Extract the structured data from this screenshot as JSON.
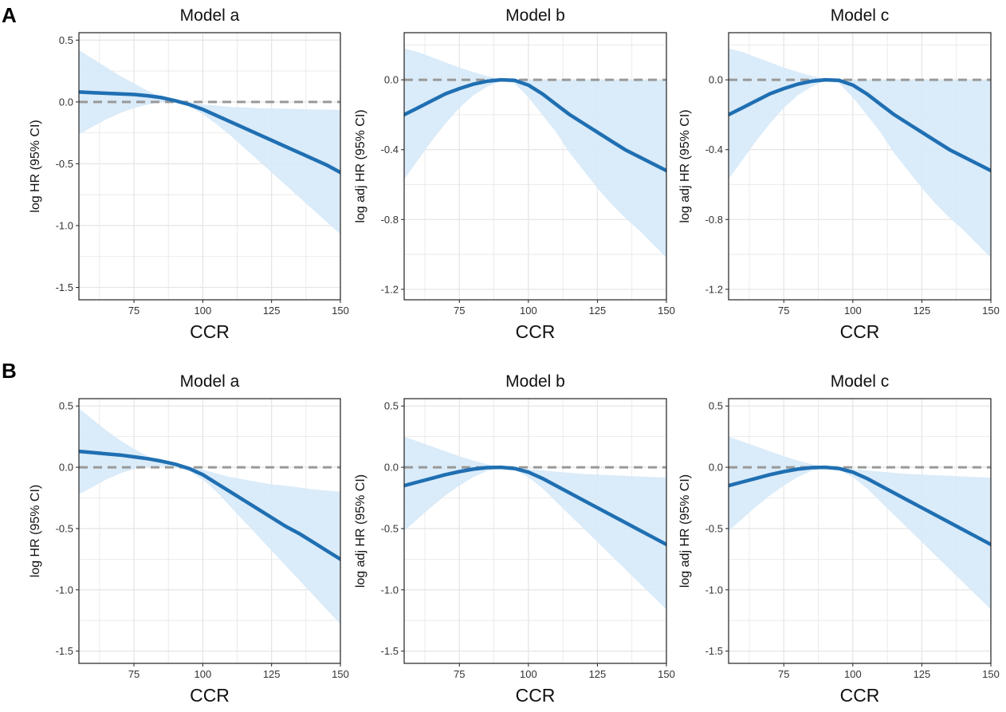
{
  "panel_labels": [
    "A",
    "B"
  ],
  "chart_data": [
    {
      "id": "A-a",
      "row": 0,
      "col": 0,
      "type": "line",
      "title": "Model a",
      "xlabel": "CCR",
      "ylabel": "log HR (95% CI)",
      "xlim": [
        55,
        150
      ],
      "ylim": [
        -1.6,
        0.56
      ],
      "xticks": [
        75,
        100,
        125,
        150
      ],
      "xtick_labels": [
        "75",
        "100",
        "125",
        "150"
      ],
      "yticks": [
        0.5,
        0.0,
        -0.5,
        -1.0,
        -1.5
      ],
      "ytick_labels": [
        "0.5",
        "0.0",
        "-0.5",
        "-1.0",
        "-1.5"
      ],
      "reference_line": 0,
      "x": [
        55,
        60,
        65,
        70,
        75,
        80,
        85,
        90,
        95,
        100,
        105,
        110,
        115,
        120,
        125,
        130,
        135,
        140,
        145,
        150
      ],
      "y": [
        0.08,
        0.075,
        0.07,
        0.065,
        0.06,
        0.05,
        0.035,
        0.01,
        -0.02,
        -0.06,
        -0.11,
        -0.16,
        -0.21,
        -0.26,
        -0.31,
        -0.36,
        -0.41,
        -0.46,
        -0.51,
        -0.57
      ],
      "upper": [
        0.42,
        0.35,
        0.28,
        0.21,
        0.15,
        0.09,
        0.04,
        0.015,
        -0.005,
        -0.02,
        -0.03,
        -0.04,
        -0.045,
        -0.05,
        -0.052,
        -0.055,
        -0.058,
        -0.06,
        -0.062,
        -0.065
      ],
      "lower": [
        -0.26,
        -0.2,
        -0.14,
        -0.09,
        -0.05,
        -0.02,
        0.0,
        -0.005,
        -0.035,
        -0.1,
        -0.18,
        -0.27,
        -0.37,
        -0.47,
        -0.57,
        -0.67,
        -0.77,
        -0.87,
        -0.97,
        -1.07
      ]
    },
    {
      "id": "A-b",
      "row": 0,
      "col": 1,
      "type": "line",
      "title": "Model b",
      "xlabel": "CCR",
      "ylabel": "log adj HR (95% CI)",
      "xlim": [
        55,
        150
      ],
      "ylim": [
        -1.26,
        0.27
      ],
      "xticks": [
        75,
        100,
        125,
        150
      ],
      "xtick_labels": [
        "75",
        "100",
        "125",
        "150"
      ],
      "yticks": [
        0.0,
        -0.4,
        -0.8,
        -1.2
      ],
      "ytick_labels": [
        "0.0",
        "-0.4",
        "-0.8",
        "-1.2"
      ],
      "reference_line": 0,
      "x": [
        55,
        60,
        65,
        70,
        75,
        80,
        85,
        90,
        95,
        100,
        105,
        110,
        115,
        120,
        125,
        130,
        135,
        140,
        145,
        150
      ],
      "y": [
        -0.2,
        -0.16,
        -0.12,
        -0.08,
        -0.05,
        -0.025,
        -0.008,
        0.0,
        -0.003,
        -0.03,
        -0.08,
        -0.14,
        -0.2,
        -0.25,
        -0.3,
        -0.35,
        -0.4,
        -0.44,
        -0.48,
        -0.52
      ],
      "upper": [
        0.18,
        0.16,
        0.13,
        0.1,
        0.07,
        0.045,
        0.022,
        0.004,
        0.0,
        0.0,
        0.0,
        0.0,
        0.0,
        0.0,
        0.0,
        0.0,
        0.0,
        0.0,
        0.0,
        0.0
      ],
      "lower": [
        -0.57,
        -0.46,
        -0.35,
        -0.25,
        -0.16,
        -0.09,
        -0.04,
        -0.005,
        -0.02,
        -0.1,
        -0.2,
        -0.3,
        -0.42,
        -0.52,
        -0.62,
        -0.71,
        -0.79,
        -0.86,
        -0.94,
        -1.02
      ]
    },
    {
      "id": "A-c",
      "row": 0,
      "col": 2,
      "type": "line",
      "title": "Model c",
      "xlabel": "CCR",
      "ylabel": "log adj HR (95% CI)",
      "xlim": [
        55,
        150
      ],
      "ylim": [
        -1.26,
        0.27
      ],
      "xticks": [
        75,
        100,
        125,
        150
      ],
      "xtick_labels": [
        "75",
        "100",
        "125",
        "150"
      ],
      "yticks": [
        0.0,
        -0.4,
        -0.8,
        -1.2
      ],
      "ytick_labels": [
        "0.0",
        "-0.4",
        "-0.8",
        "-1.2"
      ],
      "reference_line": 0,
      "x": [
        55,
        60,
        65,
        70,
        75,
        80,
        85,
        90,
        95,
        100,
        105,
        110,
        115,
        120,
        125,
        130,
        135,
        140,
        145,
        150
      ],
      "y": [
        -0.2,
        -0.16,
        -0.12,
        -0.08,
        -0.05,
        -0.025,
        -0.008,
        0.0,
        -0.003,
        -0.03,
        -0.08,
        -0.14,
        -0.2,
        -0.25,
        -0.3,
        -0.35,
        -0.4,
        -0.44,
        -0.48,
        -0.52
      ],
      "upper": [
        0.18,
        0.16,
        0.13,
        0.1,
        0.07,
        0.045,
        0.022,
        0.004,
        0.0,
        0.0,
        0.0,
        0.0,
        0.0,
        0.0,
        0.0,
        0.0,
        0.0,
        0.0,
        0.0,
        0.0
      ],
      "lower": [
        -0.57,
        -0.46,
        -0.35,
        -0.25,
        -0.16,
        -0.09,
        -0.04,
        -0.005,
        -0.02,
        -0.1,
        -0.2,
        -0.3,
        -0.42,
        -0.52,
        -0.62,
        -0.71,
        -0.79,
        -0.86,
        -0.94,
        -1.02
      ]
    },
    {
      "id": "B-a",
      "row": 1,
      "col": 0,
      "type": "line",
      "title": "Model a",
      "xlabel": "CCR",
      "ylabel": "log HR (95% CI)",
      "xlim": [
        55,
        150
      ],
      "ylim": [
        -1.6,
        0.56
      ],
      "xticks": [
        75,
        100,
        125,
        150
      ],
      "xtick_labels": [
        "75",
        "100",
        "125",
        "150"
      ],
      "yticks": [
        0.5,
        0.0,
        -0.5,
        -1.0,
        -1.5
      ],
      "ytick_labels": [
        "0.5",
        "0.0",
        "-0.5",
        "-1.0",
        "-1.5"
      ],
      "reference_line": 0,
      "x": [
        55,
        60,
        65,
        70,
        75,
        80,
        85,
        90,
        95,
        100,
        105,
        110,
        115,
        120,
        125,
        130,
        135,
        140,
        145,
        150
      ],
      "y": [
        0.13,
        0.12,
        0.11,
        0.1,
        0.085,
        0.07,
        0.05,
        0.025,
        -0.01,
        -0.06,
        -0.13,
        -0.2,
        -0.27,
        -0.34,
        -0.41,
        -0.48,
        -0.54,
        -0.61,
        -0.68,
        -0.75
      ],
      "upper": [
        0.48,
        0.39,
        0.3,
        0.22,
        0.15,
        0.09,
        0.05,
        0.025,
        0.0,
        -0.02,
        -0.05,
        -0.08,
        -0.1,
        -0.12,
        -0.14,
        -0.15,
        -0.165,
        -0.18,
        -0.19,
        -0.2
      ],
      "lower": [
        -0.22,
        -0.16,
        -0.1,
        -0.05,
        -0.015,
        0.005,
        0.01,
        0.0,
        -0.03,
        -0.1,
        -0.2,
        -0.32,
        -0.44,
        -0.56,
        -0.68,
        -0.8,
        -0.92,
        -1.04,
        -1.16,
        -1.28
      ]
    },
    {
      "id": "B-b",
      "row": 1,
      "col": 1,
      "type": "line",
      "title": "Model b",
      "xlabel": "CCR",
      "ylabel": "log adj HR (95% CI)",
      "xlim": [
        55,
        150
      ],
      "ylim": [
        -1.6,
        0.56
      ],
      "xticks": [
        75,
        100,
        125,
        150
      ],
      "xtick_labels": [
        "75",
        "100",
        "125",
        "150"
      ],
      "yticks": [
        0.5,
        0.0,
        -0.5,
        -1.0,
        -1.5
      ],
      "ytick_labels": [
        "0.5",
        "0.0",
        "-0.5",
        "-1.0",
        "-1.5"
      ],
      "reference_line": 0,
      "x": [
        55,
        60,
        65,
        70,
        75,
        80,
        85,
        90,
        95,
        100,
        105,
        110,
        115,
        120,
        125,
        130,
        135,
        140,
        145,
        150
      ],
      "y": [
        -0.15,
        -0.12,
        -0.09,
        -0.06,
        -0.035,
        -0.015,
        -0.003,
        0.0,
        -0.01,
        -0.04,
        -0.09,
        -0.15,
        -0.21,
        -0.27,
        -0.33,
        -0.39,
        -0.45,
        -0.51,
        -0.57,
        -0.63
      ],
      "upper": [
        0.25,
        0.21,
        0.17,
        0.13,
        0.09,
        0.055,
        0.025,
        0.005,
        -0.005,
        -0.015,
        -0.025,
        -0.035,
        -0.045,
        -0.055,
        -0.06,
        -0.065,
        -0.07,
        -0.075,
        -0.08,
        -0.085
      ],
      "lower": [
        -0.52,
        -0.42,
        -0.32,
        -0.23,
        -0.15,
        -0.08,
        -0.03,
        -0.005,
        -0.02,
        -0.08,
        -0.17,
        -0.28,
        -0.39,
        -0.5,
        -0.61,
        -0.72,
        -0.83,
        -0.94,
        -1.05,
        -1.16
      ]
    },
    {
      "id": "B-c",
      "row": 1,
      "col": 2,
      "type": "line",
      "title": "Model c",
      "xlabel": "CCR",
      "ylabel": "log adj HR (95% CI)",
      "xlim": [
        55,
        150
      ],
      "ylim": [
        -1.6,
        0.56
      ],
      "xticks": [
        75,
        100,
        125,
        150
      ],
      "xtick_labels": [
        "75",
        "100",
        "125",
        "150"
      ],
      "yticks": [
        0.5,
        0.0,
        -0.5,
        -1.0,
        -1.5
      ],
      "ytick_labels": [
        "0.5",
        "0.0",
        "-0.5",
        "-1.0",
        "-1.5"
      ],
      "reference_line": 0,
      "x": [
        55,
        60,
        65,
        70,
        75,
        80,
        85,
        90,
        95,
        100,
        105,
        110,
        115,
        120,
        125,
        130,
        135,
        140,
        145,
        150
      ],
      "y": [
        -0.15,
        -0.12,
        -0.09,
        -0.06,
        -0.035,
        -0.015,
        -0.003,
        0.0,
        -0.01,
        -0.04,
        -0.09,
        -0.15,
        -0.21,
        -0.27,
        -0.33,
        -0.39,
        -0.45,
        -0.51,
        -0.57,
        -0.63
      ],
      "upper": [
        0.25,
        0.21,
        0.17,
        0.13,
        0.09,
        0.055,
        0.025,
        0.005,
        -0.005,
        -0.015,
        -0.025,
        -0.035,
        -0.045,
        -0.055,
        -0.06,
        -0.065,
        -0.07,
        -0.075,
        -0.08,
        -0.085
      ],
      "lower": [
        -0.52,
        -0.42,
        -0.32,
        -0.23,
        -0.15,
        -0.08,
        -0.03,
        -0.005,
        -0.02,
        -0.08,
        -0.17,
        -0.28,
        -0.39,
        -0.5,
        -0.61,
        -0.72,
        -0.83,
        -0.94,
        -1.05,
        -1.16
      ]
    }
  ],
  "colors": {
    "line": "#1f6fb2",
    "band": "#d6e9f8",
    "reference": "#999999",
    "grid": "#e6e6e6",
    "frame": "#222222"
  }
}
